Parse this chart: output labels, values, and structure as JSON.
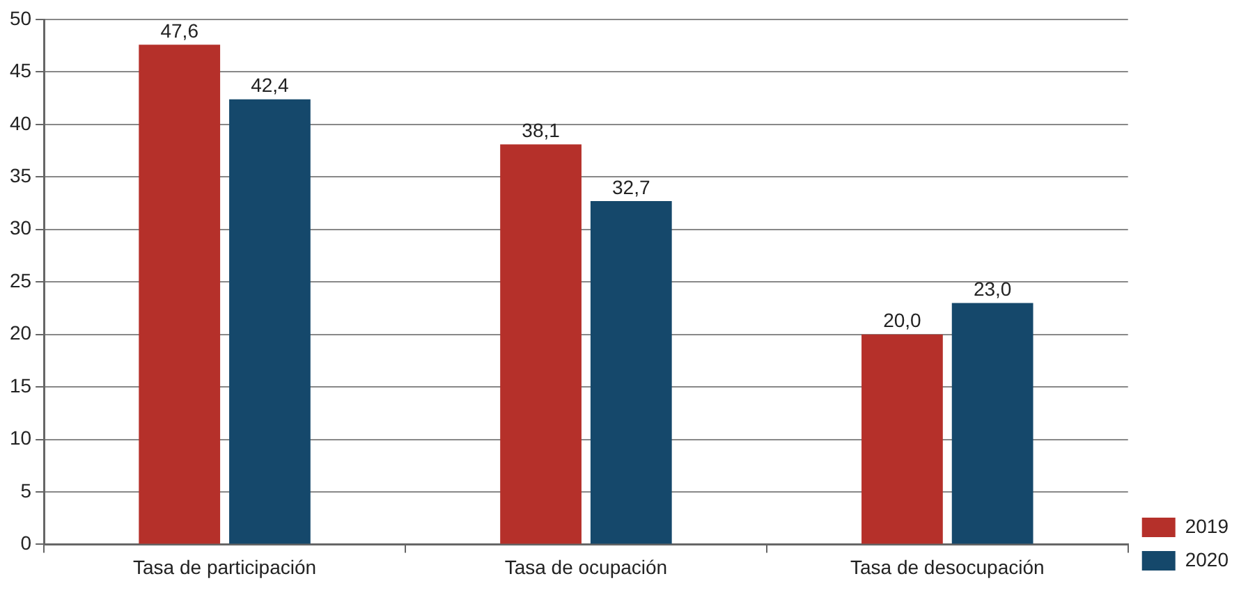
{
  "chart_data": {
    "type": "bar",
    "categories": [
      "Tasa de participación",
      "Tasa de ocupación",
      "Tasa de desocupación"
    ],
    "series": [
      {
        "name": "2019",
        "color": "#b5302a",
        "values": [
          47.6,
          38.1,
          20.0
        ],
        "value_labels": [
          "47,6",
          "38,1",
          "20,0"
        ]
      },
      {
        "name": "2020",
        "color": "#15486b",
        "values": [
          42.4,
          32.7,
          23.0
        ],
        "value_labels": [
          "42,4",
          "32,7",
          "23,0"
        ]
      }
    ],
    "ylim": [
      0,
      50
    ],
    "yticks": [
      0,
      5,
      10,
      15,
      20,
      25,
      30,
      35,
      40,
      45,
      50
    ],
    "grid": "y",
    "legend": "bottom right"
  }
}
